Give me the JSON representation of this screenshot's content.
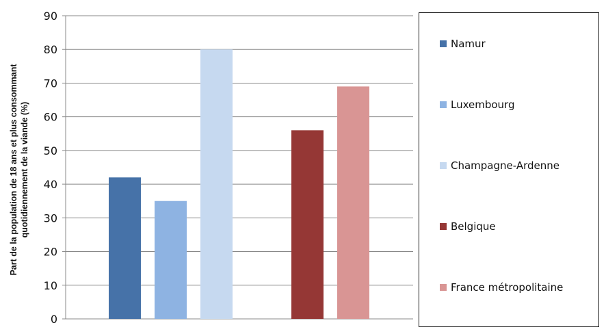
{
  "chart_data": {
    "type": "bar",
    "title": "",
    "xlabel": "",
    "ylabel_lines": [
      "Part de la population de 18 ans et plus consommant",
      "quotidiennement de la viande (%)"
    ],
    "ylim": [
      0,
      90
    ],
    "y_ticks": [
      "0",
      "10",
      "20",
      "30",
      "40",
      "50",
      "60",
      "70",
      "80",
      "90"
    ],
    "grid": true,
    "legend_position": "right",
    "series": [
      {
        "name": "Namur",
        "value": 42,
        "group": 0,
        "color": "#4672a8"
      },
      {
        "name": "Luxembourg",
        "value": 35,
        "group": 0,
        "color": "#8eb3e2"
      },
      {
        "name": "Champagne-Ardenne",
        "value": 80,
        "group": 0,
        "color": "#c6d9f0"
      },
      {
        "name": "Belgique",
        "value": 56,
        "group": 1,
        "color": "#953735"
      },
      {
        "name": "France métropolitaine",
        "value": 69,
        "group": 1,
        "color": "#d99594"
      }
    ]
  }
}
